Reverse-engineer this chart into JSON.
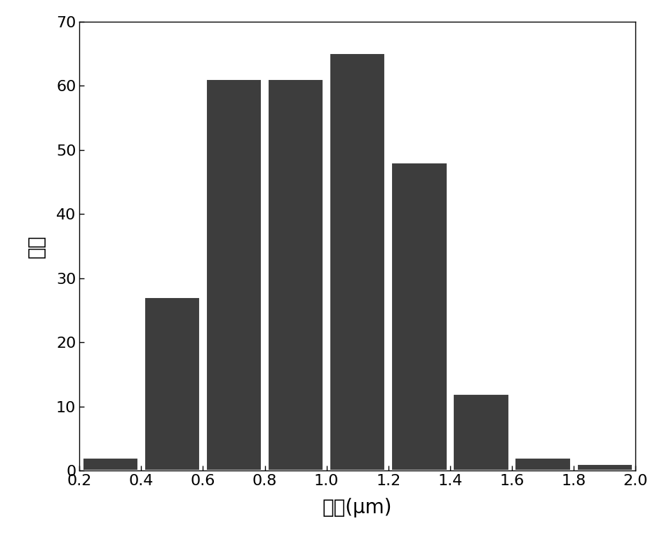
{
  "bar_centers": [
    0.3,
    0.5,
    0.7,
    0.9,
    1.1,
    1.3,
    1.5,
    1.7,
    1.9
  ],
  "bar_heights": [
    2,
    27,
    61,
    61,
    65,
    48,
    12,
    2,
    1
  ],
  "bar_width": 0.18,
  "bar_color": "#3d3d3d",
  "bar_edgecolor": "#ffffff",
  "bar_linewidth": 1.5,
  "xlim": [
    0.2,
    2.0
  ],
  "ylim": [
    0,
    70
  ],
  "xticks": [
    0.2,
    0.4,
    0.6,
    0.8,
    1.0,
    1.2,
    1.4,
    1.6,
    1.8,
    2.0
  ],
  "yticks": [
    0,
    10,
    20,
    30,
    40,
    50,
    60,
    70
  ],
  "xlabel": "直径(μm)",
  "ylabel": "数量",
  "xlabel_fontsize": 20,
  "ylabel_fontsize": 20,
  "tick_fontsize": 16,
  "background_color": "#ffffff",
  "figsize": [
    9.44,
    7.63
  ],
  "dpi": 100
}
